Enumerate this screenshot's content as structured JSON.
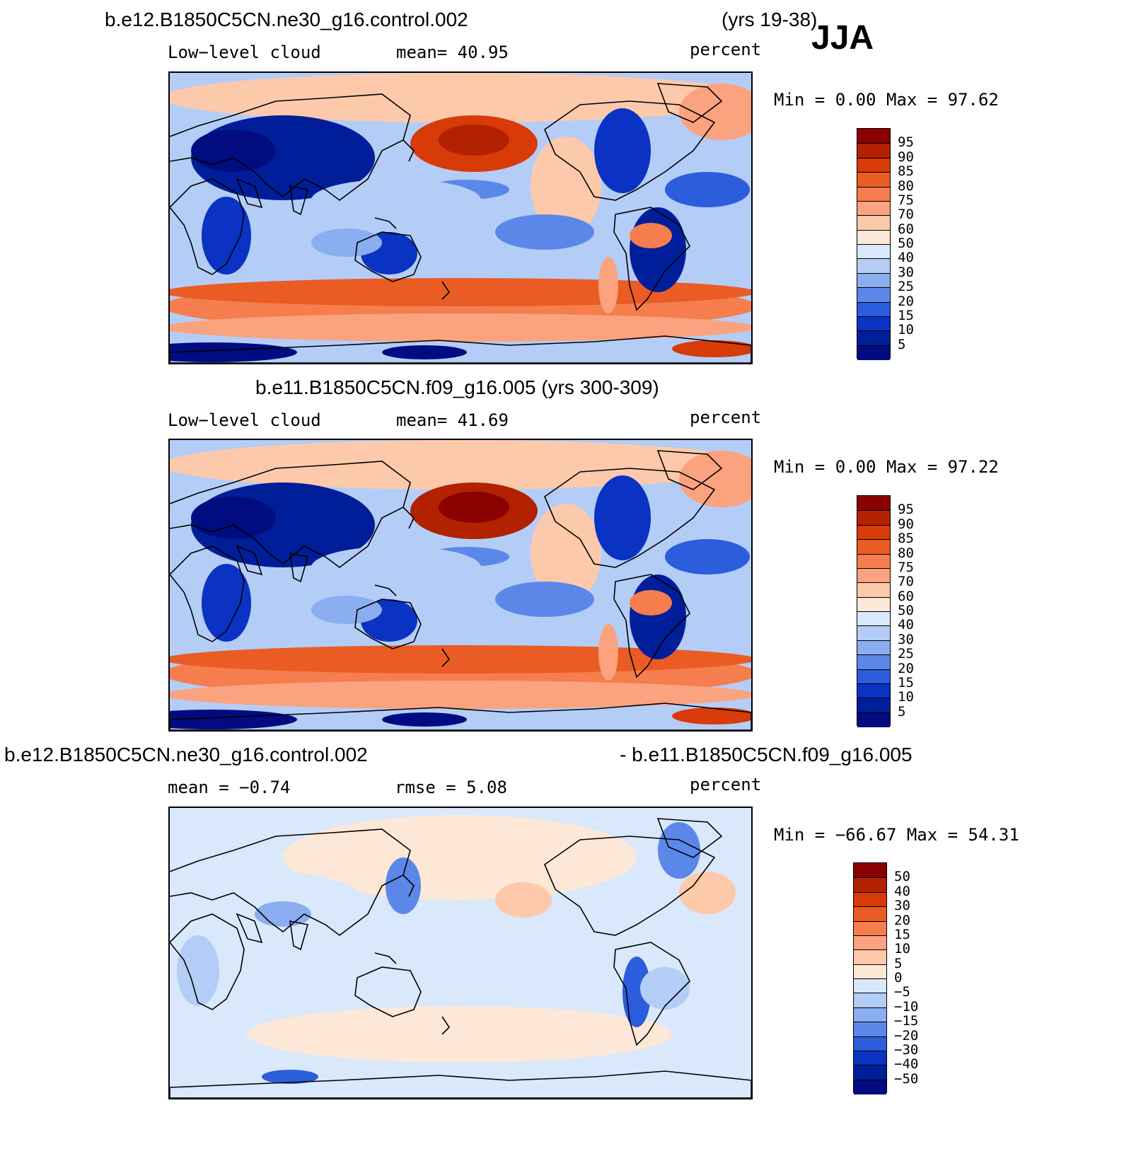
{
  "header": {
    "case_title": "b.e12.B1850C5CN.ne30_g16.control.002",
    "years": "(yrs 19-38)",
    "season": "JJA"
  },
  "panels": [
    {
      "title": "",
      "var_label": "Low−level cloud",
      "stat_label": "mean=   40.95",
      "units": "percent",
      "minmax": "Min =    0.00 Max =   97.62",
      "palette": "sequential",
      "colorbar_labels": [
        "95",
        "90",
        "85",
        "80",
        "75",
        "70",
        "60",
        "50",
        "40",
        "30",
        "25",
        "20",
        "15",
        "10",
        "5"
      ]
    },
    {
      "title": "b.e11.B1850C5CN.f09_g16.005 (yrs 300-309)",
      "var_label": "Low−level cloud",
      "stat_label": "mean=   41.69",
      "units": "percent",
      "minmax": "Min =    0.00 Max =   97.22",
      "palette": "sequential",
      "colorbar_labels": [
        "95",
        "90",
        "85",
        "80",
        "75",
        "70",
        "60",
        "50",
        "40",
        "30",
        "25",
        "20",
        "15",
        "10",
        "5"
      ]
    },
    {
      "title_left": "b.e12.B1850C5CN.ne30_g16.control.002",
      "title_right": "- b.e11.B1850C5CN.f09_g16.005",
      "var_label": "mean =   −0.74",
      "stat_label": "rmse =    5.08",
      "units": "percent",
      "minmax": "Min = −66.67 Max =   54.31",
      "palette": "difference",
      "colorbar_labels": [
        "50",
        "40",
        "30",
        "20",
        "15",
        "10",
        "5",
        "0",
        "−5",
        "−10",
        "−15",
        "−20",
        "−30",
        "−40",
        "−50"
      ]
    }
  ],
  "colors": {
    "sequential": [
      "#8b0000",
      "#b22200",
      "#d83a08",
      "#ea5c24",
      "#f57d4e",
      "#fba27e",
      "#fcc9ab",
      "#fde8d7",
      "#d9e8fb",
      "#b4cdf7",
      "#8aaef0",
      "#5b88e8",
      "#2b5ddc",
      "#0a33c4",
      "#001e9a",
      "#000c80"
    ],
    "difference": [
      "#8b0000",
      "#b22200",
      "#d83a08",
      "#ea5c24",
      "#f57d4e",
      "#fba27e",
      "#fcc9ab",
      "#fde8d7",
      "#d9e8fb",
      "#b4cdf7",
      "#8aaef0",
      "#5b88e8",
      "#2b5ddc",
      "#0a33c4",
      "#001e9a",
      "#000c80"
    ]
  }
}
